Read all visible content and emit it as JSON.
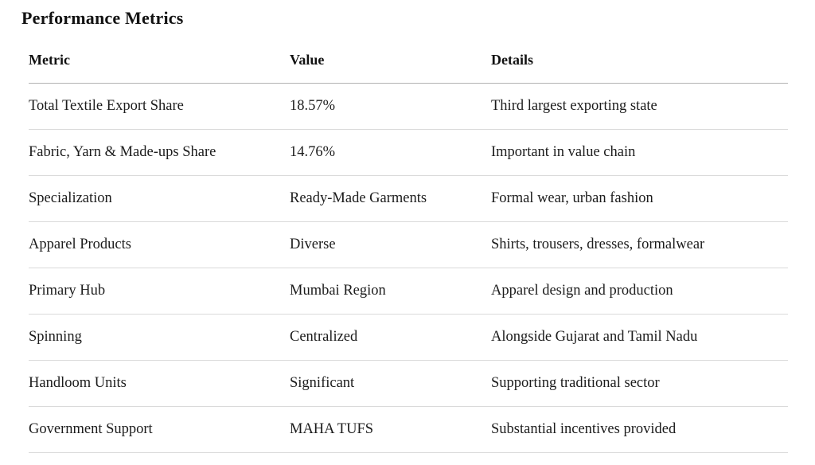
{
  "page": {
    "title": "Performance Metrics"
  },
  "colors": {
    "background": "#ffffff",
    "text": "#1c1c1c",
    "header_border": "#b2b2b2",
    "row_border": "#dadada"
  },
  "table": {
    "columns": [
      "Metric",
      "Value",
      "Details"
    ],
    "rows": [
      {
        "metric": "Total Textile Export Share",
        "value": "18.57%",
        "details": "Third largest exporting state"
      },
      {
        "metric": "Fabric, Yarn & Made-ups Share",
        "value": "14.76%",
        "details": "Important in value chain"
      },
      {
        "metric": "Specialization",
        "value": "Ready-Made Garments",
        "details": "Formal wear, urban fashion"
      },
      {
        "metric": "Apparel Products",
        "value": "Diverse",
        "details": "Shirts, trousers, dresses, formalwear"
      },
      {
        "metric": "Primary Hub",
        "value": "Mumbai Region",
        "details": "Apparel design and production"
      },
      {
        "metric": "Spinning",
        "value": "Centralized",
        "details": "Alongside Gujarat and Tamil Nadu"
      },
      {
        "metric": "Handloom Units",
        "value": "Significant",
        "details": "Supporting traditional sector"
      },
      {
        "metric": "Government Support",
        "value": "MAHA TUFS",
        "details": "Substantial incentives provided"
      }
    ]
  }
}
